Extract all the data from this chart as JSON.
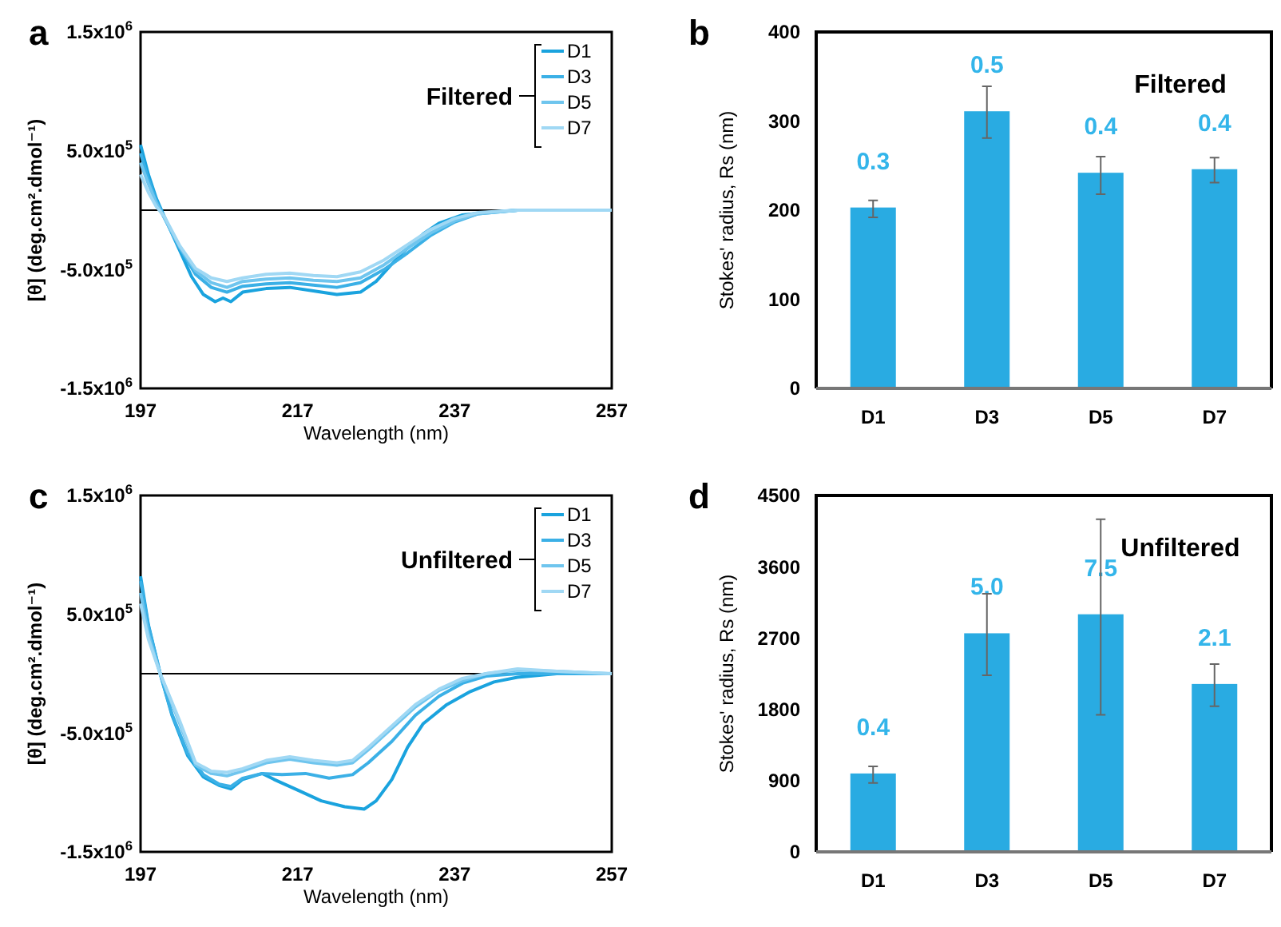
{
  "chart_data": [
    {
      "type": "line",
      "annotations": [
        "a"
      ],
      "xlabel": "Wavelength (nm)",
      "ylabel": "[θ] (deg.cm².dmol⁻¹)",
      "legend_title": "Filtered",
      "legend": "top right",
      "xlim": [
        197,
        257
      ],
      "xticks": [
        197,
        217,
        237,
        257
      ],
      "ylim": [
        -1500000,
        1500000
      ],
      "yticks": [
        {
          "value": -1500000,
          "label": "-1.5x10$^{6}$"
        },
        {
          "value": -500000,
          "label": "-5.0x10$^{5}$"
        },
        {
          "value": 500000,
          "label": "5.0x10$^{5}$"
        },
        {
          "value": 1500000,
          "label": "1.5x10$^{6}$"
        }
      ],
      "ref_lines": [
        {
          "axis": "y",
          "value": 0,
          "color": "#000000"
        }
      ],
      "series": [
        {
          "name": "D1",
          "color": "#1aa3de",
          "x": [
            197,
            198,
            199,
            200,
            202,
            203.5,
            205,
            206.5,
            207.5,
            208.5,
            210,
            213,
            216,
            219,
            222,
            225,
            227,
            230,
            233,
            235,
            238,
            241,
            245,
            250,
            257
          ],
          "values": [
            550000,
            300000,
            100000,
            -50000,
            -340000,
            -560000,
            -710000,
            -770000,
            -740000,
            -770000,
            -690000,
            -660000,
            -650000,
            -680000,
            -710000,
            -690000,
            -600000,
            -380000,
            -200000,
            -110000,
            -40000,
            -20000,
            0,
            0,
            0
          ]
        },
        {
          "name": "D3",
          "color": "#3bb0e6",
          "x": [
            197,
            198,
            199,
            200,
            202,
            204,
            206,
            208,
            210,
            213,
            216,
            219,
            222,
            225,
            228,
            231,
            234,
            237,
            240,
            245,
            250,
            257
          ],
          "values": [
            480000,
            260000,
            80000,
            -60000,
            -320000,
            -540000,
            -650000,
            -690000,
            -640000,
            -620000,
            -610000,
            -630000,
            -650000,
            -610000,
            -500000,
            -360000,
            -210000,
            -100000,
            -30000,
            0,
            0,
            0
          ]
        },
        {
          "name": "D5",
          "color": "#6fc5ee",
          "x": [
            197,
            198,
            199,
            200,
            202,
            204,
            206,
            208,
            210,
            213,
            216,
            219,
            222,
            225,
            228,
            231,
            234,
            237,
            240,
            245,
            250,
            257
          ],
          "values": [
            400000,
            220000,
            60000,
            -60000,
            -310000,
            -510000,
            -610000,
            -650000,
            -600000,
            -580000,
            -570000,
            -590000,
            -600000,
            -570000,
            -460000,
            -320000,
            -190000,
            -90000,
            -30000,
            0,
            0,
            0
          ]
        },
        {
          "name": "D7",
          "color": "#a0d8f4",
          "x": [
            197,
            198,
            199,
            200,
            202,
            204,
            206,
            208,
            210,
            213,
            216,
            219,
            222,
            225,
            228,
            231,
            234,
            237,
            240,
            245,
            250,
            257
          ],
          "values": [
            300000,
            150000,
            30000,
            -50000,
            -300000,
            -490000,
            -570000,
            -600000,
            -570000,
            -540000,
            -530000,
            -550000,
            -560000,
            -520000,
            -420000,
            -290000,
            -160000,
            -70000,
            -20000,
            0,
            0,
            0
          ]
        }
      ]
    },
    {
      "type": "bar",
      "annotations": [
        "b",
        "Filtered",
        "0.3",
        "0.5",
        "0.4",
        "0.4"
      ],
      "ylabel": "Stokes' radius, Rs (nm)",
      "categories": [
        "D1",
        "D3",
        "D5",
        "D7"
      ],
      "ylim": [
        0,
        400
      ],
      "yticks": [
        0,
        100,
        200,
        300,
        400
      ],
      "series": [
        {
          "color": "#29abe2",
          "values": [
            203,
            311,
            242,
            246
          ],
          "errors": [
            [
              192,
              211
            ],
            [
              281,
              339
            ],
            [
              218,
              260
            ],
            [
              231,
              259
            ]
          ]
        }
      ]
    },
    {
      "type": "line",
      "annotations": [
        "c"
      ],
      "xlabel": "Wavelength (nm)",
      "ylabel": "[θ] (deg.cm².dmol⁻¹)",
      "legend_title": "Unfiltered",
      "legend": "top right",
      "xlim": [
        197,
        257
      ],
      "xticks": [
        197,
        217,
        237,
        257
      ],
      "ylim": [
        -1500000,
        1500000
      ],
      "yticks": [
        {
          "value": -1500000,
          "label": "-1.5x10$^{6}$"
        },
        {
          "value": -500000,
          "label": "-5.0x10$^{5}$"
        },
        {
          "value": 500000,
          "label": "5.0x10$^{5}$"
        },
        {
          "value": 1500000,
          "label": "1.5x10$^{6}$"
        }
      ],
      "ref_lines": [
        {
          "axis": "y",
          "value": 0,
          "color": "#000000"
        }
      ],
      "series": [
        {
          "name": "D1",
          "color": "#1aa3de",
          "x": [
            197,
            198,
            199.5,
            201,
            203,
            205,
            207,
            208.5,
            210,
            212.5,
            214,
            217,
            220,
            223,
            225.5,
            227,
            229,
            231,
            233,
            236,
            239,
            242,
            245,
            250,
            257
          ],
          "values": [
            820000,
            410000,
            0,
            -350000,
            -690000,
            -870000,
            -940000,
            -970000,
            -890000,
            -840000,
            -890000,
            -980000,
            -1070000,
            -1120000,
            -1140000,
            -1070000,
            -890000,
            -620000,
            -420000,
            -260000,
            -150000,
            -70000,
            -30000,
            0,
            0
          ]
        },
        {
          "name": "D3",
          "color": "#3bb0e6",
          "x": [
            197,
            198,
            199.5,
            201,
            203,
            205,
            207,
            208.5,
            210,
            212.5,
            215,
            218,
            221,
            224,
            226,
            229,
            232,
            235,
            238,
            241,
            245,
            250,
            257
          ],
          "values": [
            780000,
            400000,
            0,
            -340000,
            -670000,
            -850000,
            -930000,
            -950000,
            -880000,
            -840000,
            -850000,
            -840000,
            -880000,
            -850000,
            -750000,
            -570000,
            -350000,
            -190000,
            -80000,
            -20000,
            0,
            0,
            0
          ]
        },
        {
          "name": "D5",
          "color": "#6fc5ee",
          "x": [
            197,
            198,
            199.5,
            202,
            204,
            206,
            208,
            210,
            213,
            216,
            219,
            222,
            224,
            226,
            229,
            232,
            235,
            238,
            241,
            245,
            250,
            257
          ],
          "values": [
            680000,
            330000,
            0,
            -420000,
            -770000,
            -840000,
            -860000,
            -820000,
            -750000,
            -720000,
            -750000,
            -770000,
            -750000,
            -640000,
            -460000,
            -280000,
            -140000,
            -60000,
            0,
            30000,
            20000,
            0
          ]
        },
        {
          "name": "D7",
          "color": "#a0d8f4",
          "x": [
            197,
            198,
            199.5,
            202,
            204,
            206,
            208,
            210,
            213,
            216,
            219,
            222,
            224,
            226,
            229,
            232,
            235,
            238,
            241,
            245,
            250,
            257
          ],
          "values": [
            590000,
            290000,
            0,
            -400000,
            -750000,
            -820000,
            -830000,
            -800000,
            -730000,
            -700000,
            -730000,
            -750000,
            -730000,
            -620000,
            -440000,
            -260000,
            -130000,
            -40000,
            0,
            40000,
            20000,
            0
          ]
        }
      ]
    },
    {
      "type": "bar",
      "annotations": [
        "d",
        "Unfiltered",
        "0.4",
        "5.0",
        "7.5",
        "2.1"
      ],
      "ylabel": "Stokes' radius, Rs (nm)",
      "categories": [
        "D1",
        "D3",
        "D5",
        "D7"
      ],
      "ylim": [
        0,
        4500
      ],
      "yticks": [
        0,
        900,
        1800,
        2700,
        3600,
        4500
      ],
      "series": [
        {
          "color": "#29abe2",
          "values": [
            990,
            2760,
            3000,
            2120
          ],
          "errors": [
            [
              870,
              1080
            ],
            [
              2230,
              3260
            ],
            [
              1730,
              4200
            ],
            [
              1840,
              2370
            ]
          ]
        }
      ]
    }
  ]
}
